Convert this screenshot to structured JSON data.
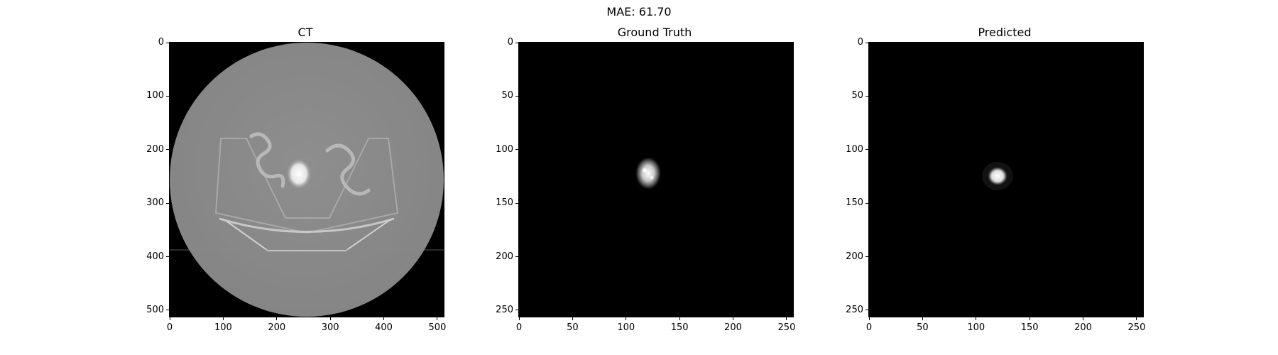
{
  "figure": {
    "suptitle": "MAE: 61.70"
  },
  "chart_data": [
    {
      "type": "heatmap",
      "title": "CT",
      "xlim": [
        0,
        512
      ],
      "ylim": [
        512,
        0
      ],
      "xticks": [
        0,
        100,
        200,
        300,
        400,
        500
      ],
      "yticks": [
        0,
        100,
        200,
        300,
        400,
        500
      ],
      "colormap": "gray"
    },
    {
      "type": "heatmap",
      "title": "Ground Truth",
      "xlim": [
        0,
        256
      ],
      "ylim": [
        256,
        0
      ],
      "xticks": [
        0,
        50,
        100,
        150,
        200,
        250
      ],
      "yticks": [
        0,
        50,
        100,
        150,
        200,
        250
      ],
      "colormap": "gray"
    },
    {
      "type": "heatmap",
      "title": "Predicted",
      "xlim": [
        0,
        256
      ],
      "ylim": [
        256,
        0
      ],
      "xticks": [
        0,
        50,
        100,
        150,
        200,
        250
      ],
      "yticks": [
        0,
        50,
        100,
        150,
        200,
        250
      ],
      "colormap": "gray"
    }
  ]
}
